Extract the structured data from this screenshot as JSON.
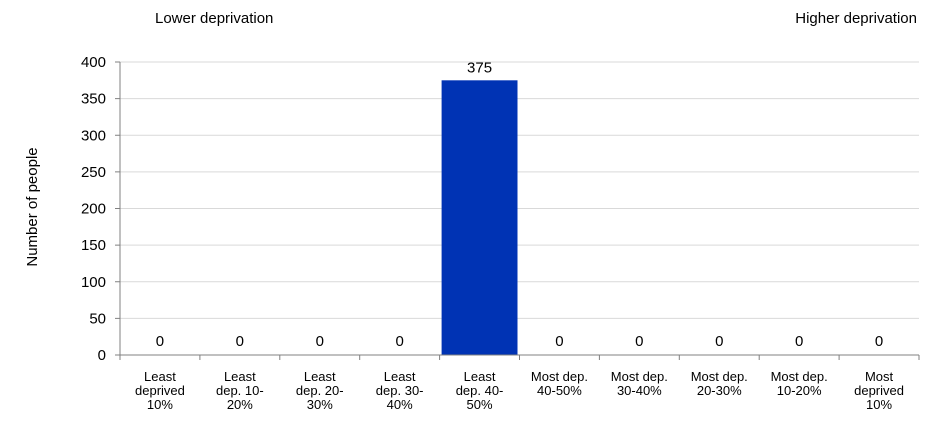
{
  "chart_data": {
    "type": "bar",
    "annotations": {
      "left": "Lower deprivation",
      "right": "Higher deprivation"
    },
    "ylabel": "Number of people",
    "xlabel": "",
    "ylim": [
      0,
      400
    ],
    "yticks": [
      0,
      50,
      100,
      150,
      200,
      250,
      300,
      350,
      400
    ],
    "grid": true,
    "legend": "none",
    "categories": [
      [
        "Least",
        "deprived",
        "10%"
      ],
      [
        "Least",
        "dep. 10-",
        "20%"
      ],
      [
        "Least",
        "dep. 20-",
        "30%"
      ],
      [
        "Least",
        "dep. 30-",
        "40%"
      ],
      [
        "Least",
        "dep. 40-",
        "50%"
      ],
      [
        "Most dep.",
        "40-50%"
      ],
      [
        "Most dep.",
        "30-40%"
      ],
      [
        "Most dep.",
        "20-30%"
      ],
      [
        "Most dep.",
        "10-20%"
      ],
      [
        "Most",
        "deprived",
        "10%"
      ]
    ],
    "values": [
      0,
      0,
      0,
      0,
      375,
      0,
      0,
      0,
      0,
      0
    ],
    "data_labels": [
      "0",
      "0",
      "0",
      "0",
      "375",
      "0",
      "0",
      "0",
      "0",
      "0"
    ],
    "colors": {
      "bar": "#0033b4",
      "grid": "#d9d9d9",
      "axis": "#808080",
      "text": "#000000"
    }
  }
}
